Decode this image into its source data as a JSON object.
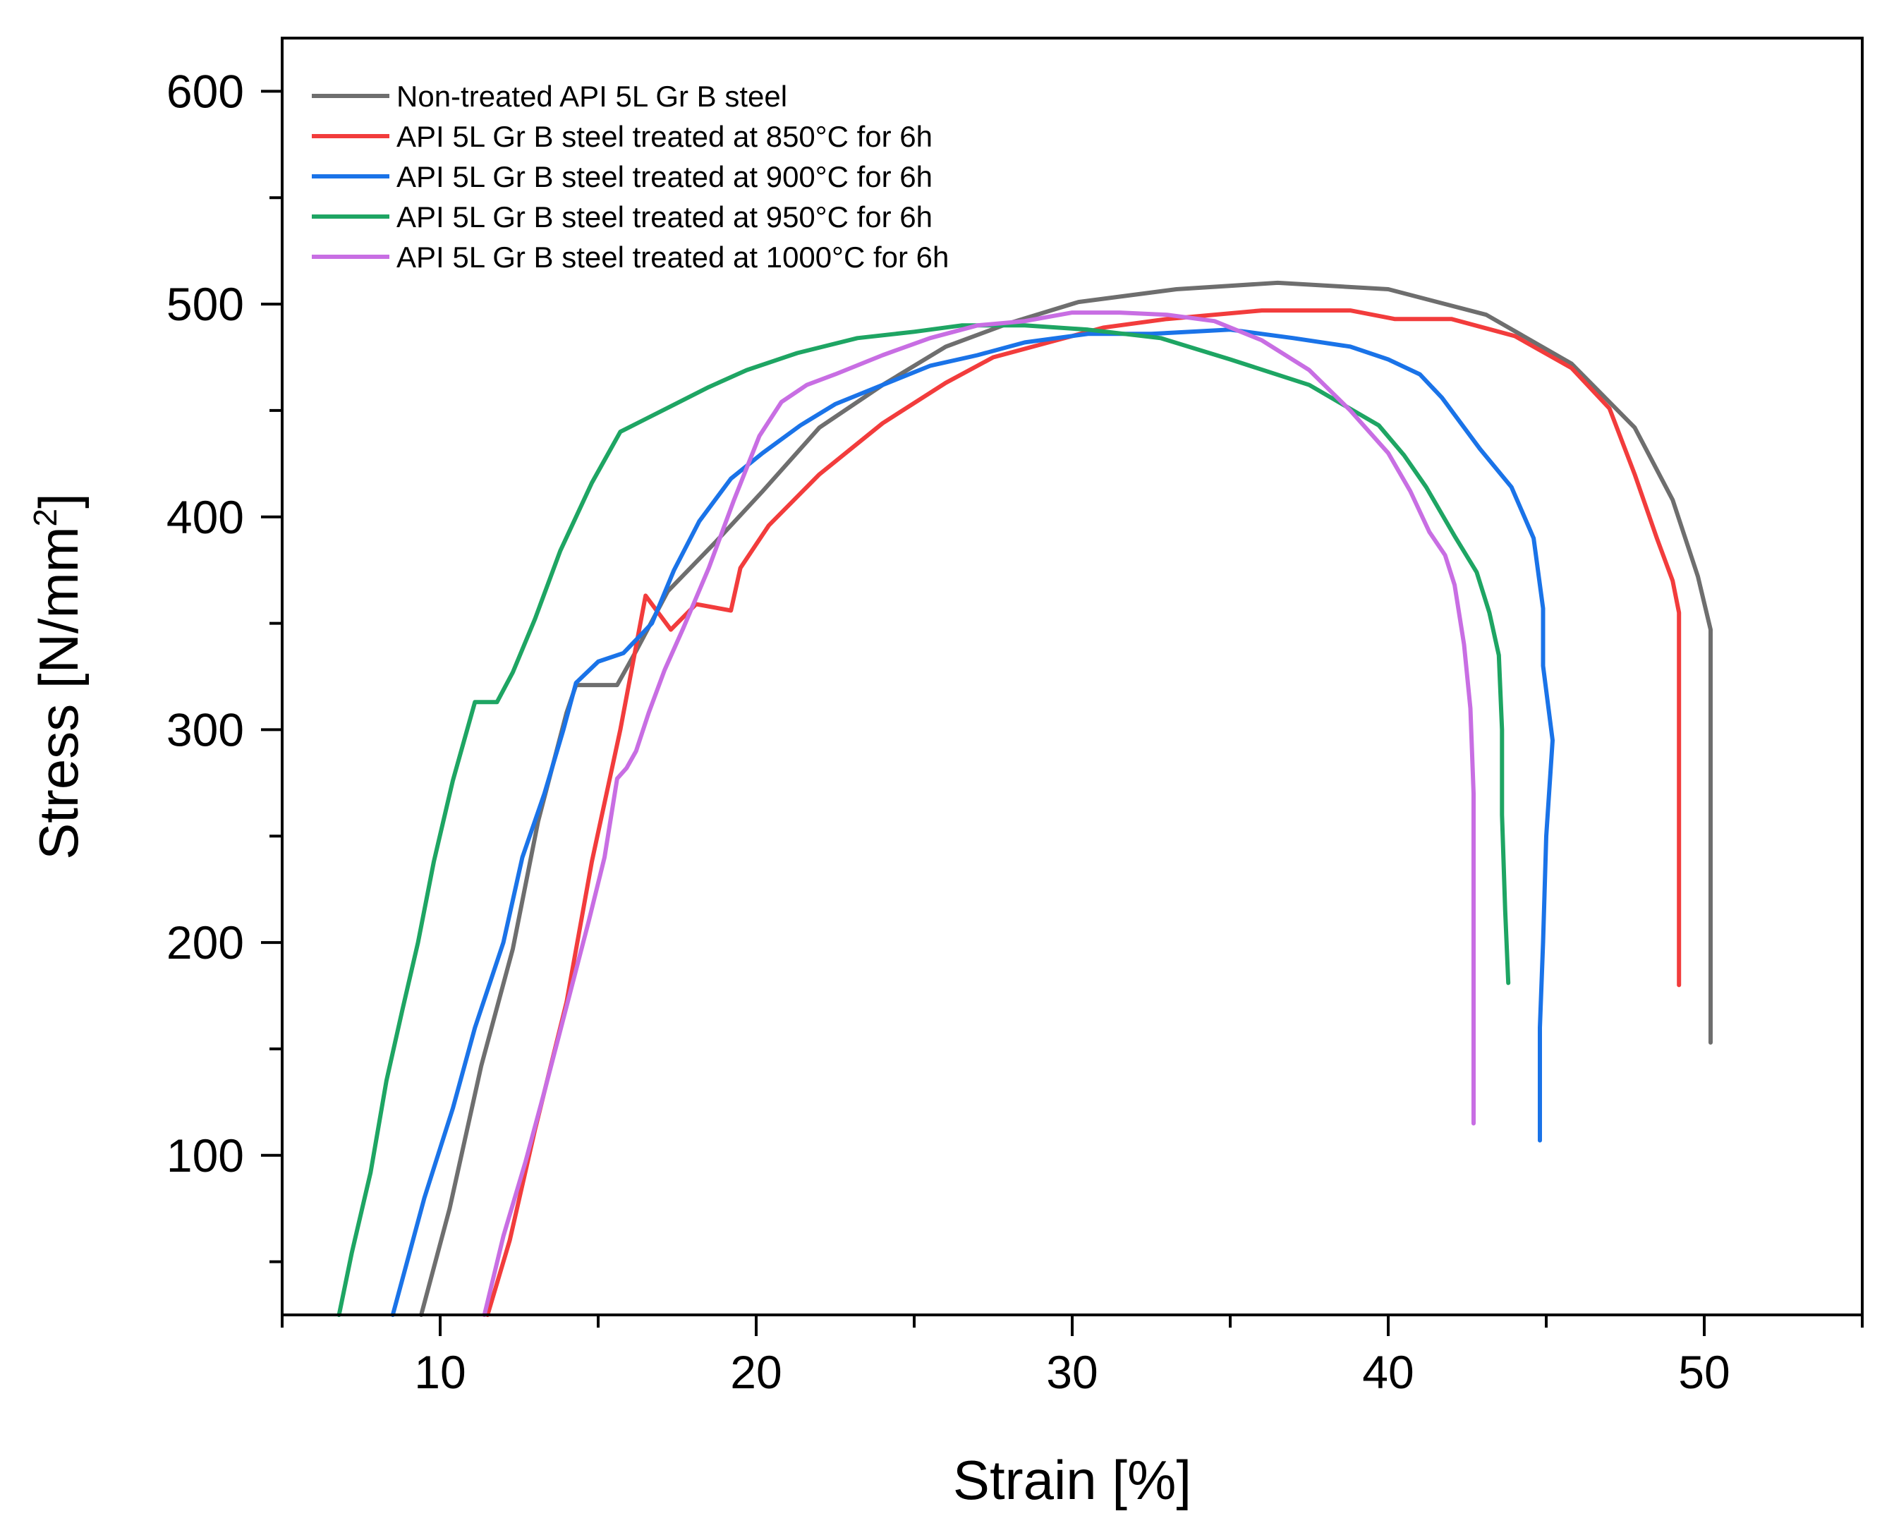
{
  "chart_data": {
    "type": "line",
    "title": "",
    "xlabel": "Strain [%]",
    "ylabel": {
      "text": "Stress [N/mm",
      "sup": "2",
      "suffix": "]"
    },
    "xlim": [
      5,
      55
    ],
    "ylim": [
      25,
      625
    ],
    "x_ticks": [
      10,
      20,
      30,
      40,
      50
    ],
    "y_ticks": [
      100,
      200,
      300,
      400,
      500,
      600
    ],
    "x_minor_step": 5,
    "y_minor_step": 50,
    "grid": false,
    "legend_position": "top-left",
    "series": [
      {
        "name": "Non-treated API 5L Gr B steel",
        "color": "#6e6e6e",
        "points": [
          [
            9.4,
            25
          ],
          [
            10.3,
            75
          ],
          [
            11.3,
            142
          ],
          [
            12.3,
            197
          ],
          [
            13.1,
            257
          ],
          [
            14.0,
            308
          ],
          [
            14.3,
            321
          ],
          [
            15.6,
            321
          ],
          [
            16.2,
            337
          ],
          [
            17.2,
            365
          ],
          [
            18.7,
            388
          ],
          [
            20.2,
            412
          ],
          [
            22.0,
            442
          ],
          [
            24.0,
            462
          ],
          [
            26.0,
            480
          ],
          [
            28.0,
            491
          ],
          [
            30.2,
            501
          ],
          [
            33.3,
            507
          ],
          [
            36.5,
            510
          ],
          [
            40.0,
            507
          ],
          [
            43.1,
            495
          ],
          [
            45.8,
            472
          ],
          [
            47.8,
            442
          ],
          [
            49.0,
            408
          ],
          [
            49.8,
            372
          ],
          [
            50.2,
            347
          ],
          [
            50.2,
            250
          ],
          [
            50.2,
            153
          ]
        ]
      },
      {
        "name": "API 5L Gr B steel treated at 850°C for 6h",
        "color": "#f23c3c",
        "points": [
          [
            11.5,
            25
          ],
          [
            12.2,
            60
          ],
          [
            13.0,
            112
          ],
          [
            14.0,
            172
          ],
          [
            14.8,
            238
          ],
          [
            15.7,
            300
          ],
          [
            16.5,
            363
          ],
          [
            17.3,
            347
          ],
          [
            18.1,
            359
          ],
          [
            19.2,
            356
          ],
          [
            19.5,
            376
          ],
          [
            20.4,
            396
          ],
          [
            22.0,
            420
          ],
          [
            24.0,
            444
          ],
          [
            26.0,
            463
          ],
          [
            27.5,
            475
          ],
          [
            29.5,
            483
          ],
          [
            31.0,
            489
          ],
          [
            33.0,
            493
          ],
          [
            36.0,
            497
          ],
          [
            38.8,
            497
          ],
          [
            40.2,
            493
          ],
          [
            42.0,
            493
          ],
          [
            44.0,
            485
          ],
          [
            45.8,
            470
          ],
          [
            47.0,
            451
          ],
          [
            47.8,
            420
          ],
          [
            48.5,
            390
          ],
          [
            49.0,
            370
          ],
          [
            49.2,
            355
          ],
          [
            49.2,
            270
          ],
          [
            49.2,
            180
          ]
        ]
      },
      {
        "name": "API 5L Gr B steel treated at 900°C for 6h",
        "color": "#1a73e8",
        "points": [
          [
            8.5,
            25
          ],
          [
            9.5,
            80
          ],
          [
            10.4,
            122
          ],
          [
            11.1,
            160
          ],
          [
            12.0,
            200
          ],
          [
            12.6,
            240
          ],
          [
            13.3,
            270
          ],
          [
            13.9,
            300
          ],
          [
            14.3,
            322
          ],
          [
            15.0,
            332
          ],
          [
            15.8,
            336
          ],
          [
            16.7,
            350
          ],
          [
            17.4,
            375
          ],
          [
            18.2,
            398
          ],
          [
            19.2,
            418
          ],
          [
            20.2,
            430
          ],
          [
            21.4,
            443
          ],
          [
            22.5,
            453
          ],
          [
            24.0,
            462
          ],
          [
            25.5,
            471
          ],
          [
            27.0,
            476
          ],
          [
            28.5,
            482
          ],
          [
            30.5,
            486
          ],
          [
            32.5,
            486
          ],
          [
            35.0,
            488
          ],
          [
            37.0,
            484
          ],
          [
            38.8,
            480
          ],
          [
            40.0,
            474
          ],
          [
            41.0,
            467
          ],
          [
            41.7,
            456
          ],
          [
            42.9,
            432
          ],
          [
            43.9,
            414
          ],
          [
            44.6,
            390
          ],
          [
            44.9,
            357
          ],
          [
            44.9,
            330
          ],
          [
            45.2,
            295
          ],
          [
            45.0,
            250
          ],
          [
            44.9,
            200
          ],
          [
            44.8,
            160
          ],
          [
            44.8,
            107
          ]
        ]
      },
      {
        "name": "API 5L Gr B steel treated at 950°C for 6h",
        "color": "#1ea563",
        "points": [
          [
            6.8,
            25
          ],
          [
            7.2,
            54
          ],
          [
            7.8,
            92
          ],
          [
            8.3,
            135
          ],
          [
            8.8,
            168
          ],
          [
            9.3,
            200
          ],
          [
            9.8,
            238
          ],
          [
            10.4,
            276
          ],
          [
            11.1,
            313
          ],
          [
            11.8,
            313
          ],
          [
            12.3,
            327
          ],
          [
            13.0,
            352
          ],
          [
            13.8,
            384
          ],
          [
            14.8,
            416
          ],
          [
            15.7,
            440
          ],
          [
            16.5,
            446
          ],
          [
            17.3,
            452
          ],
          [
            18.5,
            461
          ],
          [
            19.7,
            469
          ],
          [
            21.3,
            477
          ],
          [
            23.2,
            484
          ],
          [
            25.0,
            487
          ],
          [
            26.5,
            490
          ],
          [
            28.5,
            490
          ],
          [
            30.5,
            488
          ],
          [
            32.8,
            484
          ],
          [
            35.0,
            474
          ],
          [
            37.5,
            462
          ],
          [
            39.7,
            443
          ],
          [
            40.5,
            429
          ],
          [
            41.2,
            414
          ],
          [
            42.1,
            391
          ],
          [
            42.8,
            374
          ],
          [
            43.2,
            355
          ],
          [
            43.5,
            335
          ],
          [
            43.6,
            300
          ],
          [
            43.6,
            260
          ],
          [
            43.7,
            215
          ],
          [
            43.8,
            181
          ]
        ]
      },
      {
        "name": "API 5L Gr B steel treated at 1000°C for 6h",
        "color": "#c86ee3",
        "points": [
          [
            11.4,
            25
          ],
          [
            12.0,
            62
          ],
          [
            12.7,
            97
          ],
          [
            13.3,
            130
          ],
          [
            14.0,
            170
          ],
          [
            14.7,
            210
          ],
          [
            15.2,
            240
          ],
          [
            15.6,
            277
          ],
          [
            15.9,
            282
          ],
          [
            16.2,
            290
          ],
          [
            16.6,
            308
          ],
          [
            17.1,
            328
          ],
          [
            17.7,
            348
          ],
          [
            18.5,
            376
          ],
          [
            19.3,
            408
          ],
          [
            20.1,
            438
          ],
          [
            20.8,
            454
          ],
          [
            21.6,
            462
          ],
          [
            22.5,
            467
          ],
          [
            24.0,
            476
          ],
          [
            25.5,
            484
          ],
          [
            27.0,
            490
          ],
          [
            28.5,
            492
          ],
          [
            30.0,
            496
          ],
          [
            31.5,
            496
          ],
          [
            33.0,
            495
          ],
          [
            34.5,
            492
          ],
          [
            36.0,
            483
          ],
          [
            37.5,
            469
          ],
          [
            38.8,
            450
          ],
          [
            40.0,
            430
          ],
          [
            40.7,
            412
          ],
          [
            41.3,
            393
          ],
          [
            41.8,
            382
          ],
          [
            42.1,
            368
          ],
          [
            42.4,
            340
          ],
          [
            42.6,
            310
          ],
          [
            42.7,
            270
          ],
          [
            42.7,
            200
          ],
          [
            42.7,
            115
          ]
        ]
      }
    ]
  }
}
